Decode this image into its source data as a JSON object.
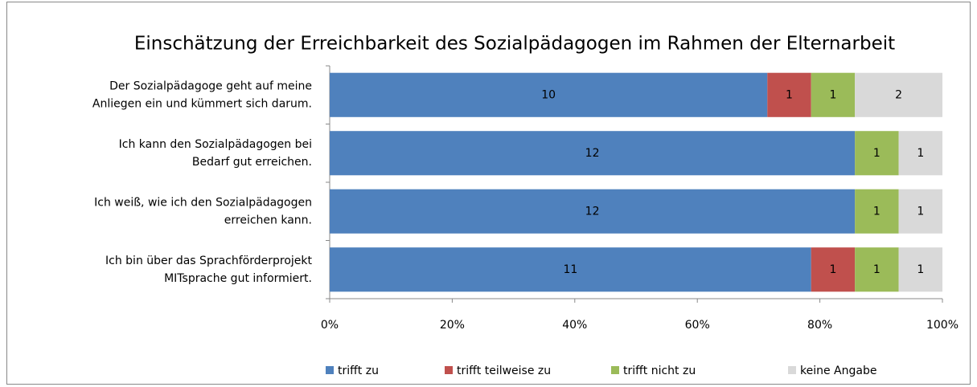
{
  "chart_data": {
    "type": "bar",
    "orientation": "horizontal",
    "stacked": "percent",
    "title": "Einschätzung der Erreichbarkeit des Sozialpädagogen im Rahmen der Elternarbeit",
    "categories": [
      "Der Sozialpädagoge geht auf meine\nAnliegen ein und kümmert sich darum.",
      "Ich kann den Sozialpädagogen bei\nBedarf gut erreichen.",
      "Ich weiß, wie ich den Sozialpädagogen\nerreichen kann.",
      "Ich bin über das Sprachförderprojekt\nMITsprache gut informiert."
    ],
    "series": [
      {
        "name": "trifft zu",
        "color": "#4f81bd",
        "values": [
          10,
          12,
          12,
          11
        ]
      },
      {
        "name": "trifft teilweise zu",
        "color": "#c0504d",
        "values": [
          1,
          0,
          0,
          1
        ]
      },
      {
        "name": "trifft nicht zu",
        "color": "#9bbb59",
        "values": [
          1,
          1,
          1,
          1
        ]
      },
      {
        "name": "keine Angabe",
        "color": "#d9d9d9",
        "values": [
          2,
          1,
          1,
          1
        ]
      }
    ],
    "xlim": [
      0,
      100
    ],
    "xticks": [
      {
        "value": 0,
        "label": "0%"
      },
      {
        "value": 20,
        "label": "20%"
      },
      {
        "value": 40,
        "label": "40%"
      },
      {
        "value": 60,
        "label": "60%"
      },
      {
        "value": 80,
        "label": "80%"
      },
      {
        "value": 100,
        "label": "100%"
      }
    ],
    "legend": "bottom"
  }
}
